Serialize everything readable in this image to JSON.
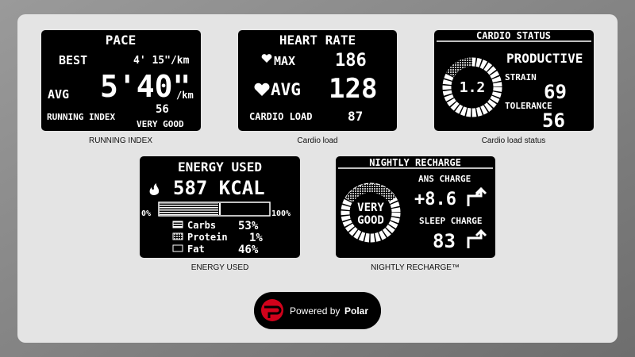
{
  "pace": {
    "title": "PACE",
    "best_label": "BEST",
    "best_value": "4' 15\"/km",
    "avg_label": "AVG",
    "avg_value": "5'40\"",
    "avg_unit": "/km",
    "index_value": "56",
    "index_label": "RUNNING INDEX",
    "index_rating": "VERY GOOD",
    "caption": "RUNNING INDEX"
  },
  "heart_rate": {
    "title": "HEART RATE",
    "max_label": "MAX",
    "max_value": "186",
    "avg_label": "AVG",
    "avg_value": "128",
    "load_label": "CARDIO LOAD",
    "load_value": "87",
    "caption": "Cardio load"
  },
  "cardio_status": {
    "title": "CARDIO STATUS",
    "gauge_value": "1.2",
    "status": "PRODUCTIVE",
    "strain_label": "STRAIN",
    "strain_value": "69",
    "tolerance_label": "TOLERANCE",
    "tolerance_value": "56",
    "caption": "Cardio load status"
  },
  "energy": {
    "title": "ENERGY USED",
    "value": "587 KCAL",
    "scale_min": "0%",
    "scale_max": "100%",
    "rows": [
      {
        "label": "Carbs",
        "value": "53%"
      },
      {
        "label": "Protein",
        "value": "1%"
      },
      {
        "label": "Fat",
        "value": "46%"
      }
    ],
    "caption": "ENERGY USED"
  },
  "recharge": {
    "title": "NIGHTLY RECHARGE",
    "status_line1": "VERY",
    "status_line2": "GOOD",
    "ans_label": "ANS CHARGE",
    "ans_value": "+8.6",
    "sleep_label": "SLEEP CHARGE",
    "sleep_value": "83",
    "caption": "NIGHTLY RECHARGE™"
  },
  "logo": {
    "text": "Powered by",
    "brand": "Polar"
  }
}
